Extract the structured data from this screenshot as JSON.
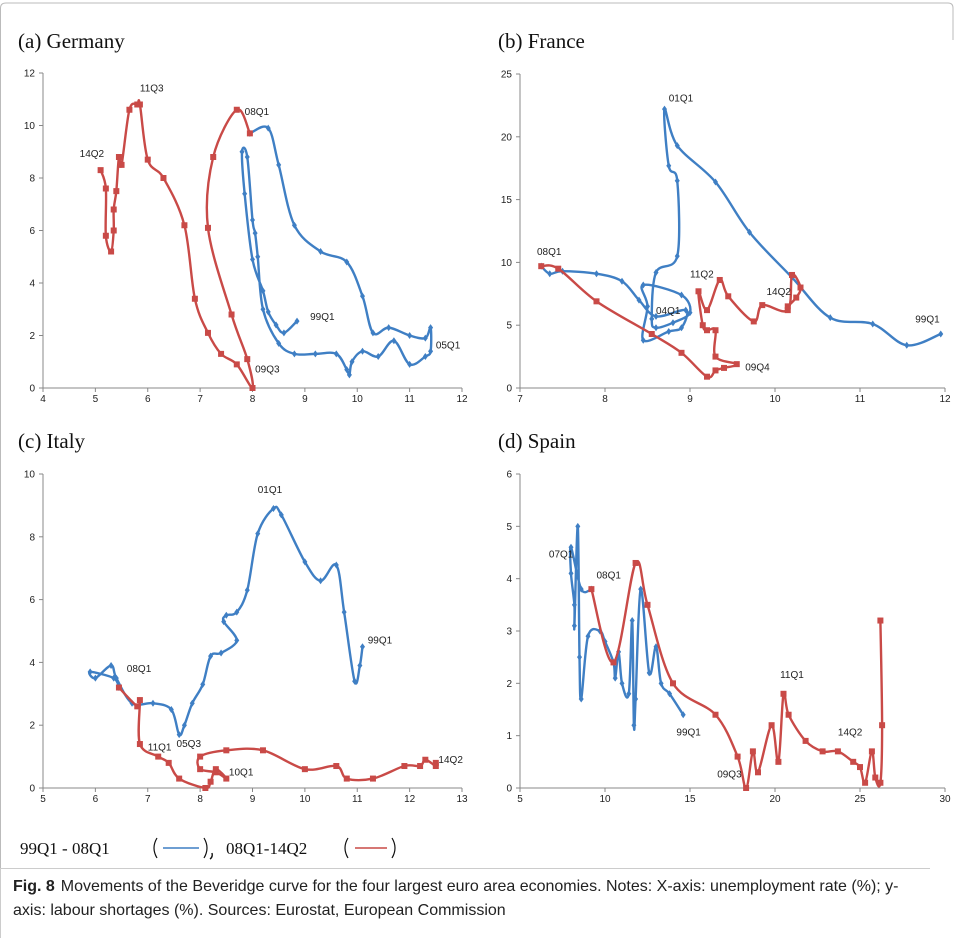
{
  "chart_data": [
    {
      "type": "line",
      "title": "(a) Germany",
      "xlim": [
        4,
        12
      ],
      "xticks": [
        4,
        5,
        6,
        7,
        8,
        9,
        10,
        11,
        12
      ],
      "ylim": [
        0,
        12
      ],
      "yticks": [
        0,
        2,
        4,
        6,
        8,
        10,
        12
      ],
      "series": [
        {
          "name": "99Q1 - 08Q1",
          "color": "#3f7fc4",
          "marker": "diamond",
          "x": [
            8.85,
            8.6,
            8.45,
            8.3,
            8.2,
            8.0,
            7.85,
            7.8,
            7.9,
            8.0,
            8.05,
            8.1,
            8.2,
            8.5,
            8.8,
            9.2,
            9.6,
            9.8,
            9.85,
            9.9,
            10.1,
            10.4,
            10.7,
            11.0,
            11.3,
            11.4,
            11.4,
            11.3,
            11.0,
            10.6,
            10.3,
            10.1,
            9.8,
            9.3,
            8.8,
            8.5,
            8.3,
            7.95
          ],
          "values": [
            2.55,
            2.1,
            2.4,
            2.9,
            3.7,
            4.9,
            7.4,
            9.0,
            8.8,
            6.4,
            5.9,
            5.0,
            3.0,
            1.7,
            1.3,
            1.3,
            1.3,
            0.7,
            0.5,
            1.0,
            1.4,
            1.2,
            1.8,
            0.9,
            1.2,
            1.4,
            2.3,
            1.9,
            2.0,
            2.3,
            2.1,
            3.5,
            4.8,
            5.2,
            6.2,
            8.5,
            9.9,
            9.7
          ]
        },
        {
          "name": "08Q1-14Q2",
          "color": "#c94a47",
          "marker": "square",
          "x": [
            7.95,
            7.7,
            7.25,
            7.15,
            7.6,
            7.9,
            8.0,
            7.7,
            7.4,
            7.15,
            6.9,
            6.7,
            6.3,
            6.0,
            5.85,
            5.8,
            5.65,
            5.5,
            5.45,
            5.4,
            5.35,
            5.35,
            5.3,
            5.2,
            5.2,
            5.1
          ],
          "values": [
            9.7,
            10.6,
            8.8,
            6.1,
            2.8,
            1.1,
            0.0,
            0.9,
            1.3,
            2.1,
            3.4,
            6.2,
            8.0,
            8.7,
            10.8,
            10.8,
            10.6,
            8.5,
            8.8,
            7.5,
            6.8,
            6.0,
            5.2,
            5.8,
            7.6,
            8.3
          ]
        }
      ],
      "annotations": [
        {
          "text": "11Q3",
          "x": 5.85,
          "y": 11.3
        },
        {
          "text": "14Q2",
          "x": 4.7,
          "y": 8.8
        },
        {
          "text": "08Q1",
          "x": 7.85,
          "y": 10.4
        },
        {
          "text": "99Q1",
          "x": 9.1,
          "y": 2.6
        },
        {
          "text": "05Q1",
          "x": 11.5,
          "y": 1.5
        },
        {
          "text": "09Q3",
          "x": 8.05,
          "y": 0.6
        }
      ]
    },
    {
      "type": "line",
      "title": "(b) France",
      "xlim": [
        7,
        12
      ],
      "xticks": [
        7,
        8,
        9,
        10,
        11,
        12
      ],
      "ylim": [
        0,
        25
      ],
      "yticks": [
        0,
        5,
        10,
        15,
        20,
        25
      ],
      "series": [
        {
          "name": "99Q1 - 08Q1",
          "color": "#3f7fc4",
          "marker": "diamond",
          "x": [
            11.95,
            11.55,
            11.15,
            10.65,
            10.2,
            9.7,
            9.3,
            8.85,
            8.7,
            8.75,
            8.85,
            8.85,
            8.6,
            8.55,
            8.6,
            8.8,
            9.0,
            8.9,
            8.45,
            8.5,
            8.45,
            8.75,
            8.9,
            8.95,
            8.6,
            8.4,
            8.2,
            7.9,
            7.5,
            7.35,
            7.25
          ],
          "values": [
            4.3,
            3.4,
            5.1,
            5.6,
            8.8,
            12.4,
            16.4,
            19.3,
            22.2,
            17.7,
            16.5,
            10.5,
            9.2,
            5.5,
            4.8,
            5.2,
            6.0,
            7.4,
            8.2,
            6.5,
            3.8,
            4.5,
            4.8,
            6.2,
            5.7,
            7.0,
            8.5,
            9.1,
            9.3,
            9.1,
            9.7
          ]
        },
        {
          "name": "08Q1-14Q2",
          "color": "#c94a47",
          "marker": "square",
          "x": [
            7.25,
            7.45,
            7.9,
            8.55,
            8.9,
            9.2,
            9.3,
            9.4,
            9.55,
            9.3,
            9.3,
            9.2,
            9.15,
            9.1,
            9.2,
            9.35,
            9.45,
            9.75,
            9.85,
            10.15,
            10.2,
            10.3,
            10.25,
            10.15
          ],
          "values": [
            9.7,
            9.5,
            6.9,
            4.3,
            2.8,
            0.9,
            1.4,
            1.6,
            1.9,
            2.5,
            4.6,
            4.6,
            5.0,
            7.7,
            6.2,
            8.6,
            7.3,
            5.3,
            6.6,
            6.2,
            9.0,
            8.0,
            7.2,
            6.5
          ]
        }
      ],
      "annotations": [
        {
          "text": "01Q1",
          "x": 8.75,
          "y": 22.8
        },
        {
          "text": "08Q1",
          "x": 7.2,
          "y": 10.6
        },
        {
          "text": "11Q2",
          "x": 9.0,
          "y": 8.8
        },
        {
          "text": "04Q1",
          "x": 8.6,
          "y": 5.9
        },
        {
          "text": "14Q2",
          "x": 9.9,
          "y": 7.4
        },
        {
          "text": "09Q4",
          "x": 9.65,
          "y": 1.4
        },
        {
          "text": "99Q1",
          "x": 11.65,
          "y": 5.2
        }
      ]
    },
    {
      "type": "line",
      "title": "(c) Italy",
      "xlim": [
        5,
        13
      ],
      "xticks": [
        5,
        6,
        7,
        8,
        9,
        10,
        11,
        12,
        13
      ],
      "ylim": [
        0,
        10
      ],
      "yticks": [
        0,
        2,
        4,
        6,
        8,
        10
      ],
      "series": [
        {
          "name": "99Q1 - 08Q1",
          "color": "#3f7fc4",
          "marker": "diamond",
          "x": [
            11.1,
            11.05,
            10.95,
            10.75,
            10.6,
            10.3,
            10.0,
            9.55,
            9.4,
            9.1,
            8.9,
            8.7,
            8.5,
            8.45,
            8.7,
            8.4,
            8.2,
            8.05,
            7.85,
            7.7,
            7.6,
            7.45,
            7.1,
            6.7,
            6.4,
            6.3,
            6.0,
            5.9,
            6.35,
            6.45
          ],
          "values": [
            4.5,
            3.9,
            3.4,
            5.6,
            7.1,
            6.6,
            7.2,
            8.7,
            8.9,
            8.1,
            6.3,
            5.6,
            5.5,
            5.3,
            4.7,
            4.3,
            4.2,
            3.3,
            2.7,
            2.0,
            1.7,
            2.5,
            2.7,
            2.7,
            3.5,
            3.9,
            3.5,
            3.7,
            3.5,
            3.2
          ]
        },
        {
          "name": "08Q1-14Q2",
          "color": "#c94a47",
          "marker": "square",
          "x": [
            6.45,
            6.8,
            6.85,
            6.85,
            7.2,
            7.4,
            7.6,
            8.1,
            8.2,
            8.3,
            8.5,
            8.3,
            8.0,
            8.0,
            8.5,
            9.2,
            10.0,
            10.6,
            10.8,
            11.3,
            11.9,
            12.2,
            12.3,
            12.5,
            12.5
          ],
          "values": [
            3.2,
            2.6,
            2.8,
            1.4,
            1.0,
            0.8,
            0.3,
            0.0,
            0.2,
            0.6,
            0.3,
            0.5,
            0.6,
            1.0,
            1.2,
            1.2,
            0.6,
            0.7,
            0.3,
            0.3,
            0.7,
            0.7,
            0.9,
            0.7,
            0.8
          ]
        }
      ],
      "annotations": [
        {
          "text": "01Q1",
          "x": 9.1,
          "y": 9.4
        },
        {
          "text": "99Q1",
          "x": 11.2,
          "y": 4.6
        },
        {
          "text": "08Q1",
          "x": 6.6,
          "y": 3.7
        },
        {
          "text": "05Q3",
          "x": 7.55,
          "y": 1.3
        },
        {
          "text": "11Q1",
          "x": 7.0,
          "y": 1.2
        },
        {
          "text": "10Q1",
          "x": 8.55,
          "y": 0.4
        },
        {
          "text": "14Q2",
          "x": 12.55,
          "y": 0.8
        }
      ]
    },
    {
      "type": "line",
      "title": "(d) Spain",
      "xlim": [
        5,
        30
      ],
      "xticks": [
        5,
        10,
        15,
        20,
        25,
        30
      ],
      "ylim": [
        0,
        6
      ],
      "yticks": [
        0,
        1,
        2,
        3,
        4,
        5,
        6
      ],
      "series": [
        {
          "name": "99Q1 - 08Q1",
          "color": "#3f7fc4",
          "marker": "diamond",
          "x": [
            14.6,
            13.8,
            13.3,
            13.0,
            12.6,
            12.1,
            11.8,
            11.7,
            11.6,
            11.4,
            11.0,
            10.8,
            10.6,
            10.5,
            10.0,
            9.7,
            9.0,
            8.6,
            8.5,
            8.4,
            8.2,
            8.2,
            8.0,
            8.0,
            8.6,
            9.2
          ],
          "values": [
            1.4,
            1.8,
            2.0,
            2.7,
            2.2,
            3.8,
            1.7,
            1.2,
            3.2,
            1.8,
            2.0,
            2.6,
            2.1,
            2.4,
            2.8,
            3.0,
            2.9,
            1.7,
            2.5,
            5.0,
            3.1,
            3.5,
            4.1,
            4.6,
            3.8,
            3.8
          ]
        },
        {
          "name": "08Q1-14Q2",
          "color": "#c94a47",
          "marker": "square",
          "x": [
            9.2,
            10.5,
            11.8,
            12.5,
            14.0,
            16.5,
            17.8,
            18.3,
            18.7,
            19.0,
            19.8,
            20.2,
            20.5,
            20.8,
            21.8,
            22.8,
            23.7,
            24.6,
            25.0,
            25.3,
            25.7,
            25.9,
            26.2,
            26.3,
            26.2
          ],
          "values": [
            3.8,
            2.4,
            4.3,
            3.5,
            2.0,
            1.4,
            0.6,
            0.0,
            0.7,
            0.3,
            1.2,
            0.5,
            1.8,
            1.4,
            0.9,
            0.7,
            0.7,
            0.5,
            0.4,
            0.1,
            0.7,
            0.2,
            0.1,
            1.2,
            3.2
          ]
        }
      ],
      "annotations": [
        {
          "text": "07Q1",
          "x": 6.7,
          "y": 4.4
        },
        {
          "text": "08Q1",
          "x": 9.5,
          "y": 4.0
        },
        {
          "text": "99Q1",
          "x": 14.2,
          "y": 1.0
        },
        {
          "text": "09Q3",
          "x": 16.6,
          "y": 0.2
        },
        {
          "text": "11Q1",
          "x": 20.3,
          "y": 2.1
        },
        {
          "text": "14Q2",
          "x": 23.7,
          "y": 1.0
        }
      ]
    }
  ],
  "caption": {
    "label": "Fig. 8",
    "text": "Movements of the Beveridge curve for the four largest euro area economies. Notes: X-axis: unemployment rate (%); y-axis: labour shortages (%). Sources: Eurostat, European Commission"
  }
}
